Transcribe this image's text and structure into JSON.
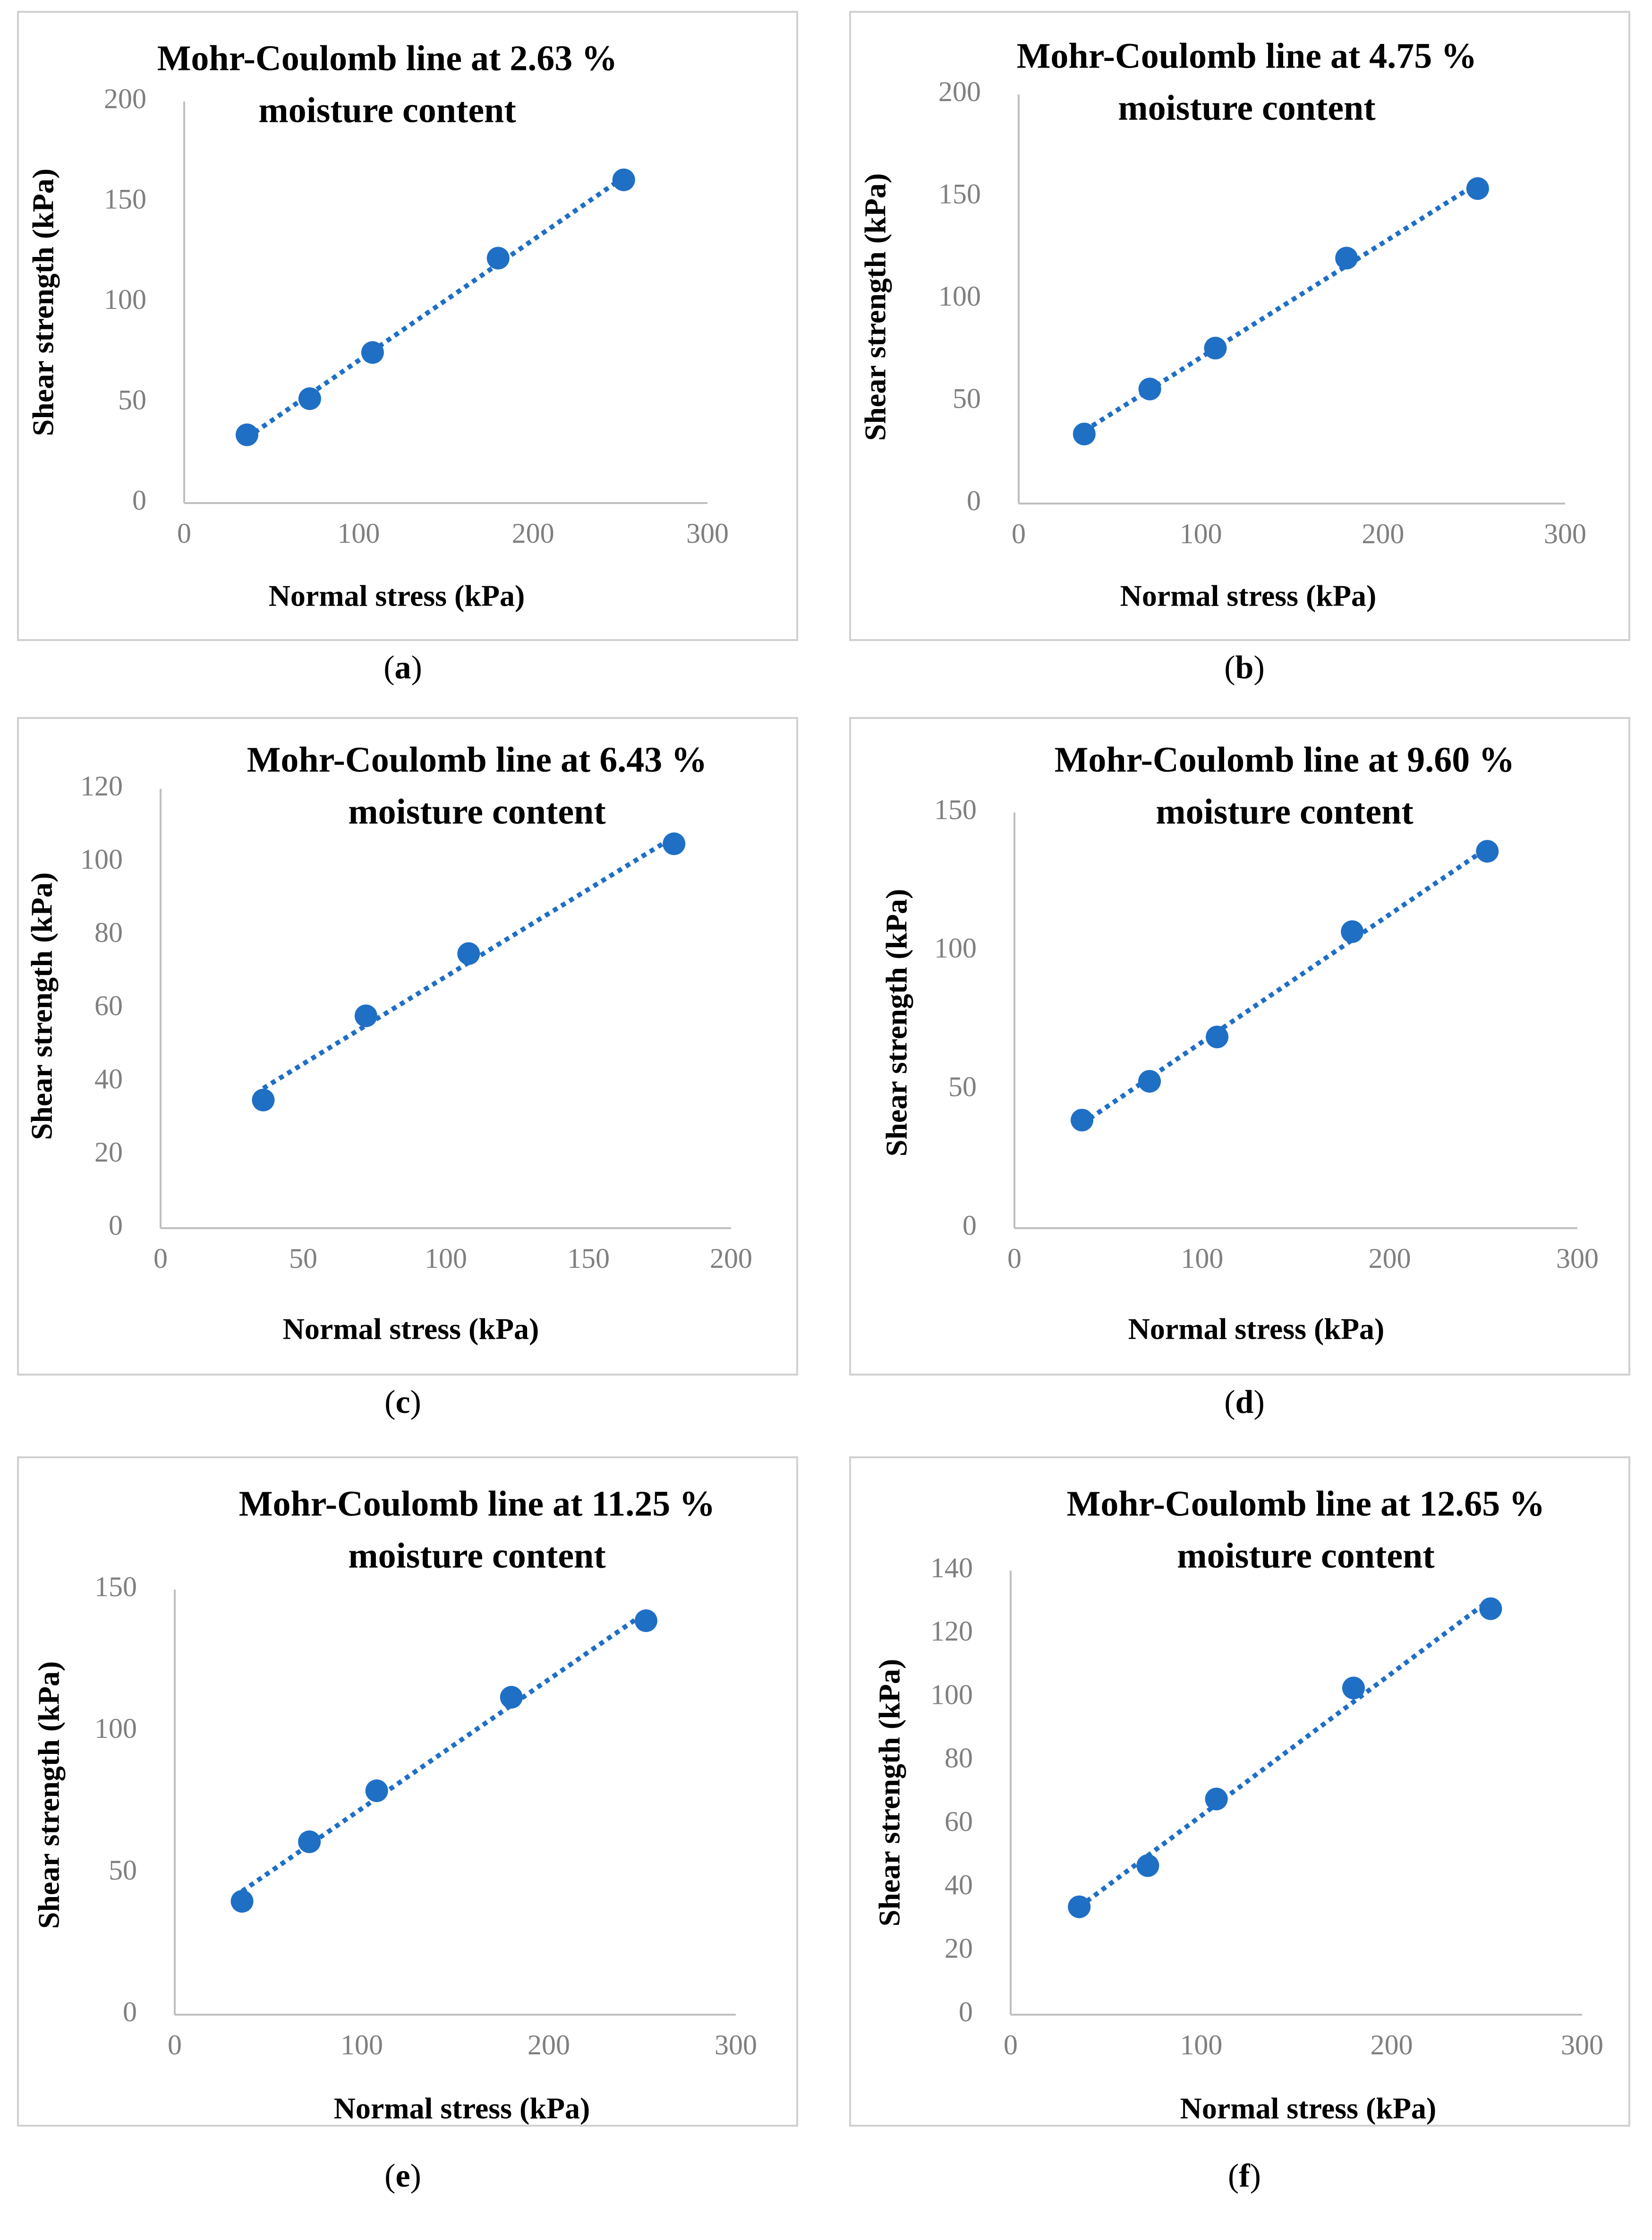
{
  "chart_data": [
    {
      "type": "scatter",
      "title": [
        "Mohr-Coulomb line at 2.63 %",
        "moisture content"
      ],
      "xlabel": "Normal stress (kPa)",
      "ylabel": "Shear strength (kPa)",
      "xlim": [
        0,
        300
      ],
      "xticks": [
        0,
        100,
        200,
        300
      ],
      "ylim": [
        0,
        200
      ],
      "yticks": [
        0,
        50,
        100,
        150,
        200
      ],
      "x": [
        36,
        72,
        108,
        180,
        252
      ],
      "y": [
        34,
        52,
        75,
        122,
        161
      ],
      "trendline": "linear (dotted)",
      "color": "#1f6fc5",
      "caption": "a"
    },
    {
      "type": "scatter",
      "title": [
        "Mohr-Coulomb line at 4.75 %",
        "moisture content"
      ],
      "xlabel": "Normal stress (kPa)",
      "ylabel": "Shear strength (kPa)",
      "xlim": [
        0,
        300
      ],
      "xticks": [
        0,
        100,
        200,
        300
      ],
      "ylim": [
        0,
        200
      ],
      "yticks": [
        0,
        50,
        100,
        150,
        200
      ],
      "x": [
        36,
        72,
        108,
        180,
        252
      ],
      "y": [
        34,
        56,
        76,
        120,
        154
      ],
      "trendline": "linear (dotted)",
      "color": "#1f6fc5",
      "caption": "b"
    },
    {
      "type": "scatter",
      "title": [
        "Mohr-Coulomb line at 6.43 %",
        "moisture content"
      ],
      "xlabel": "Normal stress (kPa)",
      "ylabel": "Shear strength (kPa)",
      "xlim": [
        0,
        200
      ],
      "xticks": [
        0,
        50,
        100,
        150,
        200
      ],
      "ylim": [
        0,
        120
      ],
      "yticks": [
        0,
        20,
        40,
        60,
        80,
        100,
        120
      ],
      "x": [
        36,
        72,
        108,
        180
      ],
      "y": [
        35,
        58,
        75,
        105
      ],
      "trendline": "linear (dotted)",
      "color": "#1f6fc5",
      "caption": "c"
    },
    {
      "type": "scatter",
      "title": [
        "Mohr-Coulomb line at 9.60 %",
        "moisture content"
      ],
      "xlabel": "Normal stress (kPa)",
      "ylabel": "Shear strength (kPa)",
      "xlim": [
        0,
        300
      ],
      "xticks": [
        0,
        100,
        200,
        300
      ],
      "ylim": [
        0,
        150
      ],
      "yticks": [
        0,
        50,
        100,
        150
      ],
      "x": [
        36,
        72,
        108,
        180,
        252
      ],
      "y": [
        39,
        53,
        69,
        107,
        136
      ],
      "trendline": "linear (dotted)",
      "color": "#1f6fc5",
      "caption": "d"
    },
    {
      "type": "scatter",
      "title": [
        "Mohr-Coulomb line at 11.25 %",
        "moisture content"
      ],
      "xlabel": "Normal stress (kPa)",
      "ylabel": "Shear strength (kPa)",
      "xlim": [
        0,
        300
      ],
      "xticks": [
        0,
        100,
        200,
        300
      ],
      "ylim": [
        0,
        150
      ],
      "yticks": [
        0,
        50,
        100,
        150
      ],
      "x": [
        36,
        72,
        108,
        180,
        252
      ],
      "y": [
        40,
        61,
        79,
        112,
        139
      ],
      "trendline": "linear (dotted)",
      "color": "#1f6fc5",
      "caption": "e"
    },
    {
      "type": "scatter",
      "title": [
        "Mohr-Coulomb line at 12.65 %",
        "moisture content"
      ],
      "xlabel": "Normal stress (kPa)",
      "ylabel": "Shear strength (kPa)",
      "xlim": [
        0,
        300
      ],
      "xticks": [
        0,
        100,
        200,
        300
      ],
      "ylim": [
        0,
        140
      ],
      "yticks": [
        0,
        20,
        40,
        60,
        80,
        100,
        120,
        140
      ],
      "x": [
        36,
        72,
        108,
        180,
        252
      ],
      "y": [
        34,
        47,
        68,
        103,
        128
      ],
      "trendline": "linear (dotted)",
      "color": "#1f6fc5",
      "caption": "f"
    }
  ]
}
